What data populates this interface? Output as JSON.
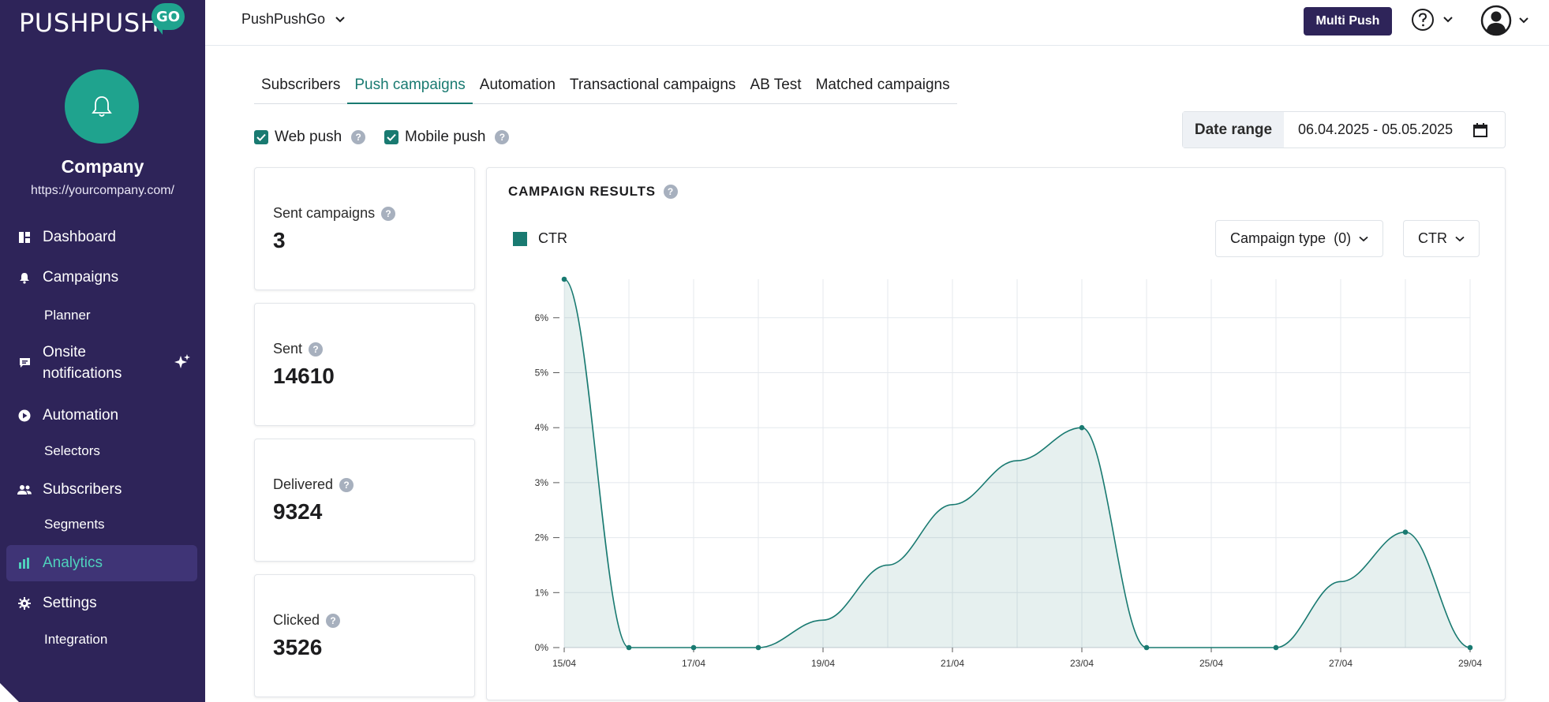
{
  "sidebar": {
    "logo_text": "PUSHPUSH",
    "logo_badge": "GO",
    "company_name": "Company",
    "company_url": "https://yourcompany.com/",
    "items": [
      {
        "label": "Dashboard",
        "icon": "dashboard-icon"
      },
      {
        "label": "Campaigns",
        "icon": "bell-icon"
      },
      {
        "label": "Planner",
        "sub": true
      },
      {
        "label": "Onsite notifications",
        "icon": "chat-icon"
      },
      {
        "label": "Automation",
        "icon": "play-icon"
      },
      {
        "label": "Selectors",
        "sub": true
      },
      {
        "label": "Subscribers",
        "icon": "users-icon"
      },
      {
        "label": "Segments",
        "sub": true
      },
      {
        "label": "Analytics",
        "icon": "bar-chart-icon",
        "active": true
      },
      {
        "label": "Settings",
        "icon": "gear-icon"
      },
      {
        "label": "Integration",
        "sub": true
      }
    ],
    "onsite_line1": "Onsite",
    "onsite_line2": "notifications",
    "active_color": "#4fd1bc",
    "bg_color": "#2e2459"
  },
  "topbar": {
    "account": "PushPushGo",
    "multi_push_label": "Multi Push"
  },
  "tabs": [
    "Subscribers",
    "Push campaigns",
    "Automation",
    "Transactional campaigns",
    "AB Test",
    "Matched campaigns"
  ],
  "active_tab": "Push campaigns",
  "filters": {
    "web_push": {
      "label": "Web push",
      "checked": true
    },
    "mobile_push": {
      "label": "Mobile push",
      "checked": true
    }
  },
  "date_range": {
    "label": "Date range",
    "value": "06.04.2025 - 05.05.2025"
  },
  "stats": [
    {
      "label": "Sent campaigns",
      "value": "3"
    },
    {
      "label": "Sent",
      "value": "14610"
    },
    {
      "label": "Delivered",
      "value": "9324"
    },
    {
      "label": "Clicked",
      "value": "3526"
    }
  ],
  "panel": {
    "title": "CAMPAIGN RESULTS",
    "legend_label": "CTR",
    "campaign_type_label": "Campaign type",
    "campaign_type_count": "(0)",
    "metric_label": "CTR"
  },
  "chart_data": {
    "type": "area",
    "series": [
      {
        "name": "CTR",
        "color": "#197a71",
        "x": [
          "15/04",
          "16/04",
          "17/04",
          "18/04",
          "19/04",
          "20/04",
          "21/04",
          "22/04",
          "23/04",
          "24/04",
          "25/04",
          "26/04",
          "27/04",
          "28/04",
          "29/04"
        ],
        "values": [
          6.7,
          0,
          0,
          0,
          0.5,
          1.5,
          2.6,
          3.4,
          4.0,
          0,
          0,
          0,
          1.2,
          2.1,
          0
        ],
        "markers": [
          0,
          1,
          2,
          3,
          8,
          9,
          11,
          13,
          14
        ]
      }
    ],
    "tick_labels_x": [
      "15/04",
      "17/04",
      "19/04",
      "21/04",
      "23/04",
      "25/04",
      "27/04",
      "29/04"
    ],
    "tick_labels_y": [
      "0%",
      "1%",
      "2%",
      "3%",
      "4%",
      "5%",
      "6%"
    ],
    "ylim": [
      0,
      6.7
    ],
    "grid": true,
    "legend": "top-left"
  }
}
